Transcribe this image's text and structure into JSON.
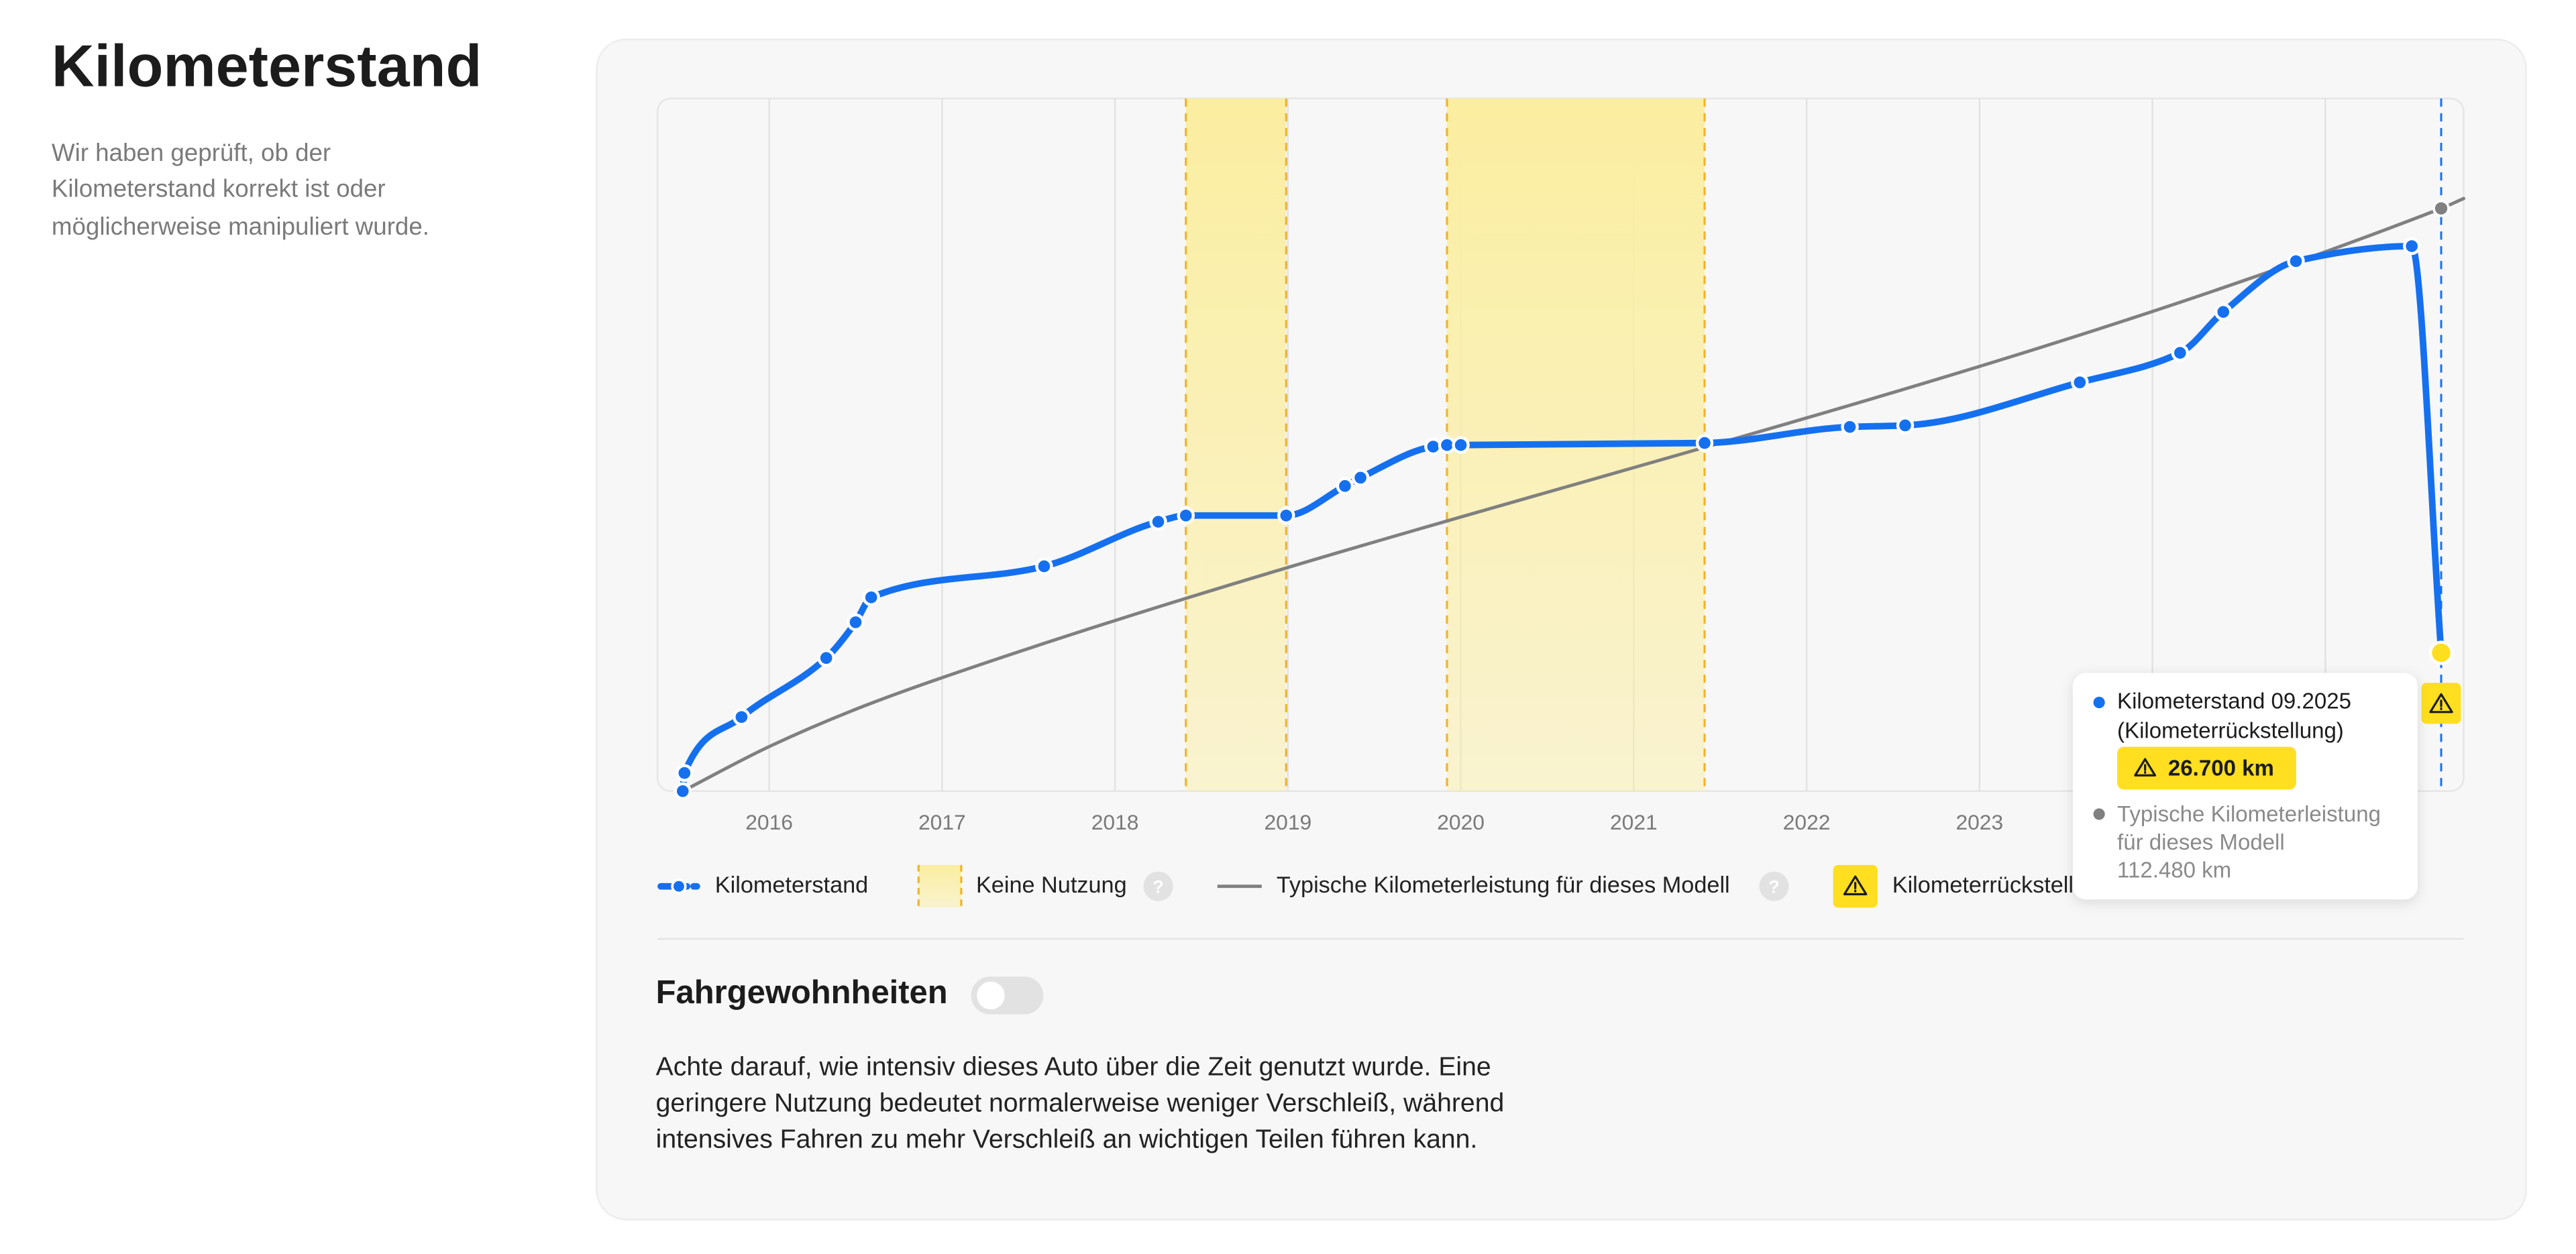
{
  "header": {
    "title": "Kilometerstand",
    "description": [
      "Wir haben geprüft, ob der",
      "Kilometerstand korrekt ist oder",
      "möglicherweise manipuliert wurde."
    ]
  },
  "chart_data": {
    "type": "line",
    "xlim": [
      2015.354,
      2025.8
    ],
    "ylim": [
      0,
      133700
    ],
    "xticks": [
      2016,
      2017,
      2018,
      2019,
      2020,
      2021,
      2022,
      2023,
      2024,
      2025
    ],
    "grid": true,
    "series": [
      {
        "name": "Kilometerstand",
        "color": "#1570ef",
        "x": [
          2015.5,
          2015.51,
          2015.84,
          2016.33,
          2016.5,
          2016.59,
          2017.59,
          2018.25,
          2018.41,
          2018.99,
          2019.33,
          2019.42,
          2019.84,
          2019.92,
          2020.0,
          2021.41,
          2022.25,
          2022.57,
          2023.58,
          2024.16,
          2024.41,
          2024.83,
          2025.5,
          2025.67
        ],
        "values": [
          0,
          3500,
          14300,
          25700,
          32600,
          37400,
          43400,
          52000,
          53200,
          53200,
          58900,
          60500,
          66500,
          66800,
          66800,
          67200,
          70300,
          70600,
          78900,
          84600,
          92500,
          102300,
          105200,
          26700
        ]
      },
      {
        "name": "Typische Kilometerleistung für dieses Modell",
        "color": "#808080",
        "x": [
          2015.5,
          2016.0,
          2016.5,
          2017.0,
          2025.67,
          2025.8
        ],
        "values": [
          0,
          8600,
          15800,
          21900,
          112480,
          114400
        ]
      }
    ],
    "band_name": "Keine Nutzung",
    "band_color": "#fbeea0",
    "bands": [
      [
        2018.41,
        2018.99
      ],
      [
        2019.92,
        2021.41
      ]
    ],
    "anomaly": {
      "name": "Kilometerrückstellung",
      "x": 2025.67,
      "color": "#ffdf1f"
    },
    "help_icon": "?",
    "tooltip": {
      "title": "Kilometerstand 09.2025",
      "subtitle": "(Kilometerrückstellung)",
      "value_label": "26.700 km",
      "typical_lines": [
        "Typische Kilometerleistung",
        "für dieses Modell"
      ],
      "typical_value_label": "112.480 km"
    }
  },
  "section": {
    "title": "Fahrgewohnheiten",
    "paragraph": [
      "Achte darauf, wie intensiv dieses Auto über die Zeit genutzt wurde. Eine",
      "geringere Nutzung bedeutet normalerweise weniger Verschleiß, während",
      "intensives Fahren zu mehr Verschleiß an wichtigen Teilen führen kann."
    ]
  }
}
